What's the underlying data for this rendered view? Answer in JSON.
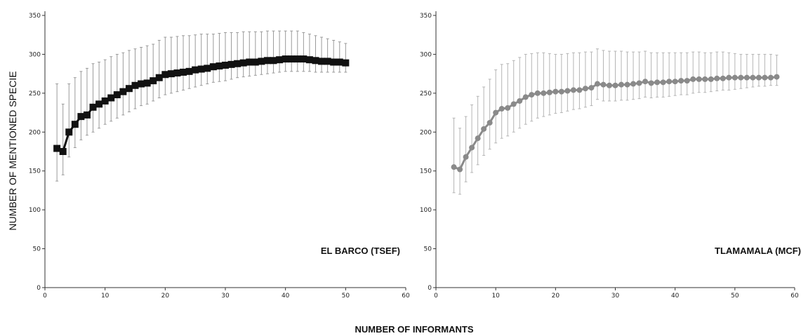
{
  "figure": {
    "ylabel": "NUMBER OF MENTIONED SPECIE",
    "xlabel": "NUMBER OF INFORMANTS"
  },
  "chart_data": [
    {
      "type": "line",
      "annotation": "EL BARCO (TSEF)",
      "xlim": [
        0,
        60
      ],
      "ylim": [
        0,
        350
      ],
      "xticks": [
        0,
        10,
        20,
        30,
        40,
        50,
        60
      ],
      "yticks": [
        0,
        50,
        100,
        150,
        200,
        250,
        300,
        350
      ],
      "marker": "square",
      "color": "#111111",
      "errorbar_color": "#9a9a9a",
      "series": [
        {
          "x": [
            2,
            3,
            4,
            5,
            6,
            7,
            8,
            9,
            10,
            11,
            12,
            13,
            14,
            15,
            16,
            17,
            18,
            19,
            20,
            21,
            22,
            23,
            24,
            25,
            26,
            27,
            28,
            29,
            30,
            31,
            32,
            33,
            34,
            35,
            36,
            37,
            38,
            39,
            40,
            41,
            42,
            43,
            44,
            45,
            46,
            47,
            48,
            49,
            50
          ],
          "y": [
            179,
            175,
            200,
            210,
            220,
            222,
            232,
            236,
            240,
            244,
            248,
            252,
            256,
            260,
            262,
            263,
            266,
            270,
            274,
            275,
            276,
            277,
            278,
            280,
            281,
            282,
            284,
            285,
            286,
            287,
            288,
            289,
            290,
            290,
            291,
            292,
            292,
            293,
            294,
            294,
            294,
            294,
            293,
            292,
            291,
            291,
            290,
            290,
            289
          ],
          "upper": [
            262,
            236,
            262,
            270,
            278,
            282,
            288,
            290,
            293,
            297,
            300,
            302,
            305,
            307,
            309,
            311,
            313,
            318,
            322,
            322,
            323,
            324,
            324,
            325,
            326,
            326,
            326,
            327,
            328,
            328,
            328,
            329,
            329,
            329,
            329,
            330,
            330,
            330,
            330,
            330,
            330,
            328,
            326,
            324,
            322,
            320,
            318,
            316,
            314
          ],
          "lower": [
            137,
            145,
            168,
            180,
            190,
            196,
            200,
            205,
            210,
            214,
            218,
            222,
            226,
            230,
            234,
            236,
            240,
            244,
            248,
            250,
            252,
            254,
            256,
            258,
            260,
            262,
            264,
            265,
            266,
            268,
            270,
            271,
            272,
            273,
            274,
            275,
            276,
            277,
            278,
            278,
            278,
            278,
            278,
            277,
            277,
            277,
            277,
            277,
            277
          ]
        }
      ]
    },
    {
      "type": "line",
      "annotation": "TLAMAMALA (MCF)",
      "xlim": [
        0,
        60
      ],
      "ylim": [
        0,
        350
      ],
      "xticks": [
        0,
        10,
        20,
        30,
        40,
        50,
        60
      ],
      "yticks": [
        0,
        50,
        100,
        150,
        200,
        250,
        300,
        350
      ],
      "marker": "circle",
      "color": "#8a8a8a",
      "errorbar_color": "#b5b5b5",
      "series": [
        {
          "x": [
            3,
            4,
            5,
            6,
            7,
            8,
            9,
            10,
            11,
            12,
            13,
            14,
            15,
            16,
            17,
            18,
            19,
            20,
            21,
            22,
            23,
            24,
            25,
            26,
            27,
            28,
            29,
            30,
            31,
            32,
            33,
            34,
            35,
            36,
            37,
            38,
            39,
            40,
            41,
            42,
            43,
            44,
            45,
            46,
            47,
            48,
            49,
            50,
            51,
            52,
            53,
            54,
            55,
            56,
            57
          ],
          "y": [
            155,
            152,
            168,
            180,
            192,
            204,
            212,
            225,
            230,
            231,
            236,
            240,
            245,
            248,
            250,
            250,
            251,
            252,
            252,
            253,
            254,
            254,
            256,
            257,
            262,
            261,
            260,
            260,
            261,
            261,
            262,
            263,
            265,
            263,
            264,
            264,
            265,
            265,
            266,
            266,
            268,
            268,
            268,
            268,
            269,
            269,
            270,
            270,
            270,
            270,
            270,
            270,
            270,
            270,
            271
          ],
          "upper": [
            218,
            205,
            220,
            235,
            246,
            258,
            268,
            280,
            287,
            288,
            292,
            296,
            300,
            301,
            302,
            302,
            301,
            300,
            300,
            301,
            302,
            302,
            303,
            303,
            307,
            305,
            304,
            304,
            304,
            303,
            303,
            303,
            304,
            302,
            302,
            302,
            302,
            302,
            302,
            302,
            303,
            303,
            302,
            302,
            303,
            303,
            302,
            301,
            300,
            300,
            300,
            300,
            300,
            300,
            299
          ],
          "lower": [
            122,
            120,
            136,
            148,
            158,
            170,
            178,
            186,
            192,
            195,
            200,
            205,
            210,
            214,
            218,
            220,
            222,
            224,
            225,
            227,
            229,
            230,
            232,
            234,
            242,
            240,
            240,
            240,
            241,
            241,
            242,
            243,
            245,
            244,
            245,
            245,
            246,
            247,
            248,
            248,
            250,
            251,
            251,
            252,
            253,
            254,
            254,
            255,
            256,
            257,
            258,
            259,
            259,
            260,
            260
          ]
        }
      ]
    }
  ]
}
